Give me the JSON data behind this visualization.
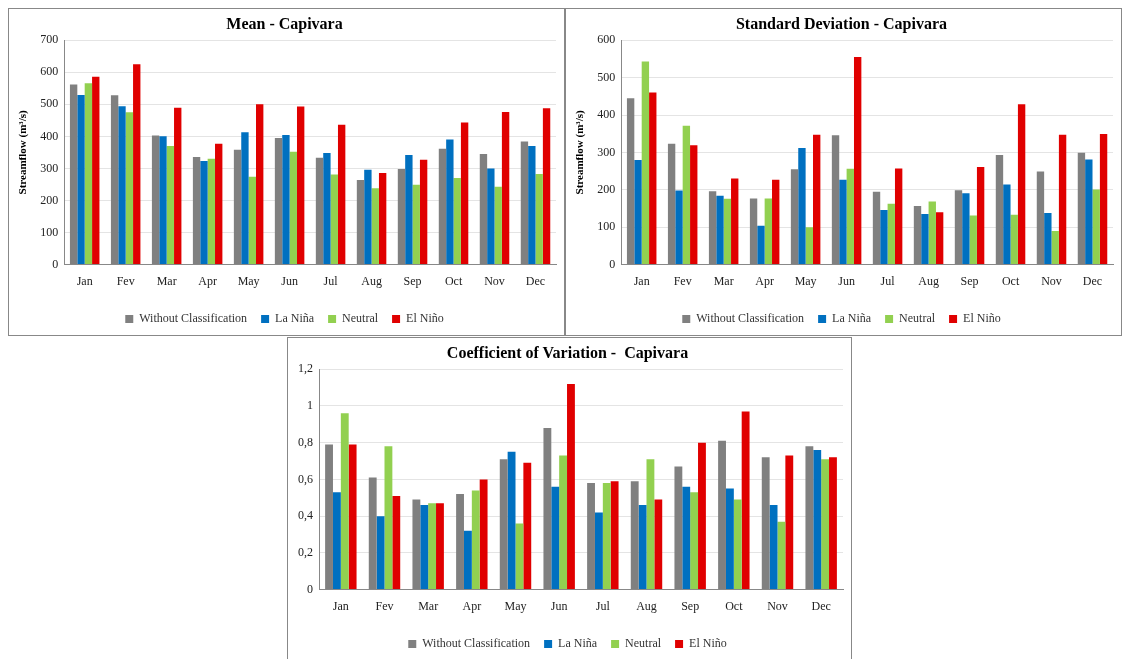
{
  "chart_data": [
    {
      "type": "bar",
      "title": "Mean - Capivara",
      "ylabel": "Streamflow (m³/s)",
      "categories": [
        "Jan",
        "Fev",
        "Mar",
        "Apr",
        "May",
        "Jun",
        "Jul",
        "Aug",
        "Sep",
        "Oct",
        "Nov",
        "Dec"
      ],
      "ylim": [
        0,
        700
      ],
      "yticks": [
        0,
        100,
        200,
        300,
        400,
        500,
        600,
        700
      ],
      "grid": "y",
      "legend": "bottom",
      "series": [
        {
          "name": "Without Classification",
          "color": "#808080",
          "values": [
            562,
            528,
            403,
            336,
            358,
            395,
            333,
            264,
            298,
            361,
            345,
            384
          ]
        },
        {
          "name": "La Niña",
          "color": "#0070c0",
          "values": [
            529,
            494,
            400,
            323,
            413,
            404,
            348,
            296,
            342,
            390,
            300,
            370
          ]
        },
        {
          "name": "Neutral",
          "color": "#92d050",
          "values": [
            566,
            475,
            370,
            330,
            274,
            352,
            281,
            238,
            249,
            270,
            243,
            283
          ]
        },
        {
          "name": "El Niño",
          "color": "#e00000",
          "values": [
            586,
            625,
            489,
            377,
            500,
            493,
            436,
            286,
            327,
            443,
            476,
            488
          ]
        }
      ]
    },
    {
      "type": "bar",
      "title": "Standard Deviation - Capivara",
      "ylabel": "Streamflow (m³/s)",
      "categories": [
        "Jan",
        "Fev",
        "Mar",
        "Apr",
        "May",
        "Jun",
        "Jul",
        "Aug",
        "Sep",
        "Oct",
        "Nov",
        "Dec"
      ],
      "ylim": [
        0,
        600
      ],
      "yticks": [
        0,
        100,
        200,
        300,
        400,
        500,
        600
      ],
      "grid": "y",
      "legend": "bottom",
      "series": [
        {
          "name": "Without Classification",
          "color": "#808080",
          "values": [
            445,
            323,
            196,
            177,
            255,
            346,
            195,
            157,
            199,
            293,
            249,
            299
          ]
        },
        {
          "name": "La Niña",
          "color": "#0070c0",
          "values": [
            280,
            198,
            184,
            104,
            312,
            227,
            146,
            135,
            191,
            214,
            138,
            281
          ]
        },
        {
          "name": "Neutral",
          "color": "#92d050",
          "values": [
            543,
            371,
            176,
            177,
            100,
            256,
            163,
            169,
            131,
            133,
            90,
            201
          ]
        },
        {
          "name": "El Niño",
          "color": "#e00000",
          "values": [
            460,
            319,
            230,
            227,
            347,
            555,
            257,
            140,
            261,
            429,
            347,
            349
          ]
        }
      ]
    },
    {
      "type": "bar",
      "title": "Coefficient of Variation -  Capivara",
      "categories": [
        "Jan",
        "Fev",
        "Mar",
        "Apr",
        "May",
        "Jun",
        "Jul",
        "Aug",
        "Sep",
        "Oct",
        "Nov",
        "Dec"
      ],
      "ylim": [
        0,
        1.2
      ],
      "yticks": [
        0,
        {
          "value": 0.2,
          "label": "0,2"
        },
        {
          "value": 0.4,
          "label": "0,4"
        },
        {
          "value": 0.6,
          "label": "0,6"
        },
        {
          "value": 0.8,
          "label": "0,8"
        },
        1,
        {
          "value": 1.2,
          "label": "1,2"
        }
      ],
      "grid": "y",
      "legend": "bottom",
      "series": [
        {
          "name": "Without Classification",
          "color": "#808080",
          "values": [
            0.79,
            0.61,
            0.49,
            0.52,
            0.71,
            0.88,
            0.58,
            0.59,
            0.67,
            0.81,
            0.72,
            0.78
          ]
        },
        {
          "name": "La Niña",
          "color": "#0070c0",
          "values": [
            0.53,
            0.4,
            0.46,
            0.32,
            0.75,
            0.56,
            0.42,
            0.46,
            0.56,
            0.55,
            0.46,
            0.76
          ]
        },
        {
          "name": "Neutral",
          "color": "#92d050",
          "values": [
            0.96,
            0.78,
            0.47,
            0.54,
            0.36,
            0.73,
            0.58,
            0.71,
            0.53,
            0.49,
            0.37,
            0.71
          ]
        },
        {
          "name": "El Niño",
          "color": "#e00000",
          "values": [
            0.79,
            0.51,
            0.47,
            0.6,
            0.69,
            1.12,
            0.59,
            0.49,
            0.8,
            0.97,
            0.73,
            0.72
          ]
        }
      ]
    }
  ]
}
